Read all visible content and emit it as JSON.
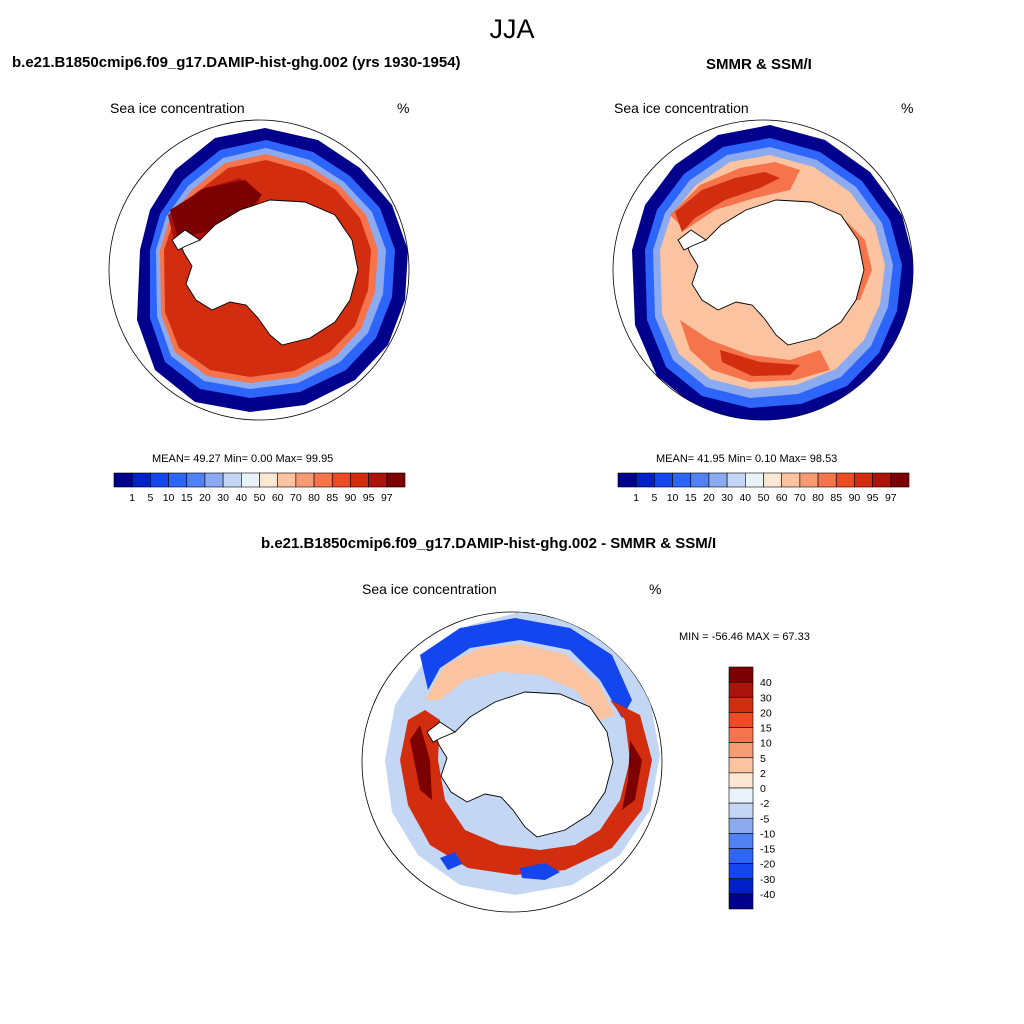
{
  "title": "JJA",
  "panels": [
    {
      "heading": "b.e21.B1850cmip6.f09_g17.DAMIP-hist-ghg.002 (yrs 1930-1954)",
      "left_label": "Sea ice concentration",
      "right_label": "%",
      "stats": "MEAN=  49.27  Min=   0.00  Max=  99.95"
    },
    {
      "heading": "SMMR & SSM/I",
      "left_label": "Sea ice concentration",
      "right_label": "%",
      "stats": "MEAN=  41.95  Min=   0.10  Max=  98.53"
    },
    {
      "heading": "b.e21.B1850cmip6.f09_g17.DAMIP-hist-ghg.002 - SMMR & SSM/I",
      "left_label": "Sea ice concentration",
      "right_label": "%",
      "stats": "MIN = -56.46 MAX =  67.33"
    }
  ],
  "colorbar_concentration": {
    "labels": [
      "1",
      "5",
      "10",
      "15",
      "20",
      "30",
      "40",
      "50",
      "60",
      "70",
      "80",
      "85",
      "90",
      "95",
      "97"
    ],
    "colors": [
      "#00008c",
      "#0021c8",
      "#1446f0",
      "#2d64fa",
      "#5082f5",
      "#8caaf0",
      "#c3d7f5",
      "#eaf2fb",
      "#fde6d2",
      "#fbc3a0",
      "#f79b73",
      "#f5744b",
      "#ed4b23",
      "#d22d0f",
      "#aa140a",
      "#7d0000"
    ]
  },
  "colorbar_difference": {
    "labels": [
      "40",
      "30",
      "20",
      "15",
      "10",
      "5",
      "2",
      "0",
      "-2",
      "-5",
      "-10",
      "-15",
      "-20",
      "-30",
      "-40"
    ],
    "colors": [
      "#7d0000",
      "#aa140a",
      "#d22d0f",
      "#ed4b23",
      "#f5744b",
      "#f79b73",
      "#fbc3a0",
      "#fde6d2",
      "#eaf2fb",
      "#c3d7f5",
      "#8caaf0",
      "#5082f5",
      "#2d64fa",
      "#1446f0",
      "#0021c8",
      "#00008c"
    ]
  }
}
